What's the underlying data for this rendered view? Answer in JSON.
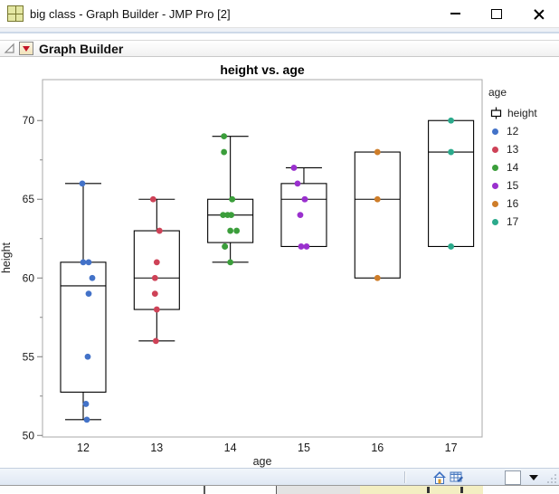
{
  "window": {
    "title": "big class - Graph Builder - JMP Pro [2]",
    "app_icon": "jmp-data-table-icon",
    "controls": {
      "minimize": "minimize-icon",
      "maximize": "maximize-icon",
      "close": "close-icon"
    }
  },
  "report": {
    "header": "Graph Builder",
    "disclosure_icon": "collapse-triangle-icon",
    "menu_icon": "red-triangle-menu-icon"
  },
  "chart_data": {
    "type": "boxplot",
    "title": "height vs. age",
    "xlabel": "age",
    "ylabel": "height",
    "x_categories": [
      "12",
      "13",
      "14",
      "15",
      "16",
      "17"
    ],
    "ylim": [
      49.9,
      72.6
    ],
    "yticks_major": [
      50,
      55,
      60,
      65,
      70
    ],
    "yticks_minor": [
      52.5,
      57.5,
      62.5,
      67.5
    ],
    "grid": false,
    "legend": {
      "title": "age",
      "series_glyph": "boxplot-icon",
      "series_label": "height",
      "position": "right",
      "entries": [
        {
          "label": "12",
          "color": "#4372C8"
        },
        {
          "label": "13",
          "color": "#CE4257"
        },
        {
          "label": "14",
          "color": "#3B9E3B"
        },
        {
          "label": "15",
          "color": "#9A30CE"
        },
        {
          "label": "16",
          "color": "#CE7D29"
        },
        {
          "label": "17",
          "color": "#2BAA8C"
        }
      ]
    },
    "series": [
      {
        "category": "12",
        "color": "#4372C8",
        "box": {
          "min": 51,
          "q1": 52.75,
          "median": 59.5,
          "q3": 61,
          "max": 66
        },
        "points": [
          {
            "v": 66,
            "dx": -1
          },
          {
            "v": 61,
            "dx": 0
          },
          {
            "v": 61,
            "dx": 6
          },
          {
            "v": 60,
            "dx": 10
          },
          {
            "v": 59,
            "dx": 6
          },
          {
            "v": 55,
            "dx": 5
          },
          {
            "v": 52,
            "dx": 3
          },
          {
            "v": 51,
            "dx": 4
          }
        ]
      },
      {
        "category": "13",
        "color": "#CE4257",
        "box": {
          "min": 56,
          "q1": 58,
          "median": 60,
          "q3": 63,
          "max": 65
        },
        "points": [
          {
            "v": 65,
            "dx": -4
          },
          {
            "v": 63,
            "dx": 3
          },
          {
            "v": 61,
            "dx": 0
          },
          {
            "v": 60,
            "dx": -2
          },
          {
            "v": 59,
            "dx": -2
          },
          {
            "v": 58,
            "dx": 0
          },
          {
            "v": 56,
            "dx": -1
          }
        ]
      },
      {
        "category": "14",
        "color": "#3B9E3B",
        "box": {
          "min": 61,
          "q1": 62.25,
          "median": 64,
          "q3": 65,
          "max": 69
        },
        "points": [
          {
            "v": 69,
            "dx": -7
          },
          {
            "v": 68,
            "dx": -7
          },
          {
            "v": 65,
            "dx": 2
          },
          {
            "v": 65,
            "dx": 2
          },
          {
            "v": 64,
            "dx": -8
          },
          {
            "v": 64,
            "dx": -3
          },
          {
            "v": 64,
            "dx": 1
          },
          {
            "v": 63,
            "dx": 0
          },
          {
            "v": 63,
            "dx": 7
          },
          {
            "v": 62,
            "dx": -6
          },
          {
            "v": 62,
            "dx": -6
          },
          {
            "v": 61,
            "dx": 0
          }
        ]
      },
      {
        "category": "15",
        "color": "#9A30CE",
        "box": {
          "min": 62,
          "q1": 62,
          "median": 65,
          "q3": 66,
          "max": 67
        },
        "points": [
          {
            "v": 67,
            "dx": -11
          },
          {
            "v": 66,
            "dx": -7
          },
          {
            "v": 65,
            "dx": 1
          },
          {
            "v": 65,
            "dx": 1
          },
          {
            "v": 64,
            "dx": -4
          },
          {
            "v": 62,
            "dx": -3
          },
          {
            "v": 62,
            "dx": 3
          }
        ]
      },
      {
        "category": "16",
        "color": "#CE7D29",
        "box": {
          "min": 60,
          "q1": 60,
          "median": 65,
          "q3": 68,
          "max": 68
        },
        "points": [
          {
            "v": 68,
            "dx": 0
          },
          {
            "v": 65,
            "dx": 0
          },
          {
            "v": 60,
            "dx": 0
          }
        ]
      },
      {
        "category": "17",
        "color": "#2BAA8C",
        "box": {
          "min": 62,
          "q1": 62,
          "median": 68,
          "q3": 70,
          "max": 70
        },
        "points": [
          {
            "v": 70,
            "dx": 0
          },
          {
            "v": 68,
            "dx": 0
          },
          {
            "v": 62,
            "dx": 0
          }
        ]
      }
    ]
  },
  "statusbar": {
    "icons": [
      "home-icon",
      "edit-table-icon",
      "selection-box",
      "dropdown-caret",
      "resize-grip"
    ]
  }
}
